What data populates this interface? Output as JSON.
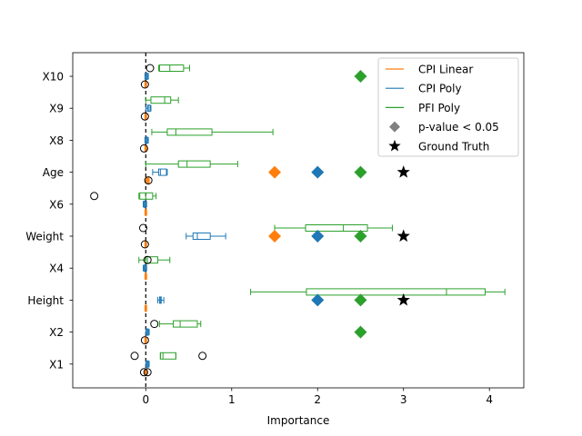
{
  "chart_data": {
    "type": "boxplot",
    "title": "",
    "xlabel": "Importance",
    "ylabel": "",
    "xlim": [
      -0.85,
      4.4
    ],
    "xticks": [
      0,
      1,
      2,
      3,
      4
    ],
    "xtick_labels": [
      "0",
      "1",
      "2",
      "3",
      "4"
    ],
    "reference_line": 0,
    "categories": [
      "X1",
      "X2",
      "Height",
      "X4",
      "Weight",
      "X6",
      "Age",
      "X8",
      "X9",
      "X10"
    ],
    "series_styles": {
      "cpi_linear": {
        "color": "#ff7f0e"
      },
      "cpi_poly": {
        "color": "#1f77b4"
      },
      "pfi_poly": {
        "color": "#2ca02c"
      }
    },
    "series": [
      {
        "name": "CPI Linear",
        "key": "cpi_linear",
        "boxes": [
          {
            "category": "X1",
            "whislo": -0.01,
            "q1": -0.005,
            "med": 0.0,
            "q3": 0.005,
            "whishi": 0.01,
            "fliers": [
              -0.02,
              0.02
            ]
          },
          {
            "category": "X2",
            "whislo": -0.01,
            "q1": -0.005,
            "med": 0.0,
            "q3": 0.005,
            "whishi": 0.01,
            "fliers": [
              -0.01
            ]
          },
          {
            "category": "Height",
            "whislo": -0.01,
            "q1": -0.005,
            "med": 0.0,
            "q3": 0.005,
            "whishi": 0.01,
            "fliers": []
          },
          {
            "category": "X4",
            "whislo": -0.01,
            "q1": -0.005,
            "med": 0.0,
            "q3": 0.005,
            "whishi": 0.01,
            "fliers": []
          },
          {
            "category": "Weight",
            "whislo": -0.01,
            "q1": -0.005,
            "med": 0.0,
            "q3": 0.005,
            "whishi": 0.01,
            "fliers": [
              -0.01
            ]
          },
          {
            "category": "X6",
            "whislo": -0.01,
            "q1": -0.005,
            "med": 0.0,
            "q3": 0.005,
            "whishi": 0.01,
            "fliers": []
          },
          {
            "category": "Age",
            "whislo": 0.0,
            "q1": 0.01,
            "med": 0.02,
            "q3": 0.03,
            "whishi": 0.04,
            "fliers": [
              0.03
            ]
          },
          {
            "category": "X8",
            "whislo": -0.01,
            "q1": -0.005,
            "med": 0.0,
            "q3": 0.005,
            "whishi": 0.01,
            "fliers": [
              -0.02
            ]
          },
          {
            "category": "X9",
            "whislo": -0.01,
            "q1": -0.005,
            "med": 0.0,
            "q3": 0.005,
            "whishi": 0.01,
            "fliers": [
              -0.01
            ]
          },
          {
            "category": "X10",
            "whislo": -0.01,
            "q1": -0.005,
            "med": 0.0,
            "q3": 0.005,
            "whishi": 0.01,
            "fliers": [
              -0.01
            ]
          }
        ]
      },
      {
        "name": "CPI Poly",
        "key": "cpi_poly",
        "boxes": [
          {
            "category": "X1",
            "whislo": 0.0,
            "q1": 0.01,
            "med": 0.02,
            "q3": 0.03,
            "whishi": 0.04,
            "fliers": []
          },
          {
            "category": "X2",
            "whislo": 0.0,
            "q1": 0.01,
            "med": 0.02,
            "q3": 0.03,
            "whishi": 0.04,
            "fliers": []
          },
          {
            "category": "Height",
            "whislo": 0.14,
            "q1": 0.16,
            "med": 0.17,
            "q3": 0.18,
            "whishi": 0.21,
            "fliers": []
          },
          {
            "category": "X4",
            "whislo": -0.03,
            "q1": -0.02,
            "med": -0.01,
            "q3": 0.0,
            "whishi": 0.01,
            "fliers": []
          },
          {
            "category": "Weight",
            "whislo": 0.47,
            "q1": 0.55,
            "med": 0.6,
            "q3": 0.75,
            "whishi": 0.93,
            "fliers": []
          },
          {
            "category": "X6",
            "whislo": -0.03,
            "q1": -0.02,
            "med": -0.01,
            "q3": 0.0,
            "whishi": 0.01,
            "fliers": []
          },
          {
            "category": "Age",
            "whislo": 0.08,
            "q1": 0.15,
            "med": 0.17,
            "q3": 0.24,
            "whishi": 0.25,
            "fliers": []
          },
          {
            "category": "X8",
            "whislo": -0.01,
            "q1": 0.0,
            "med": 0.01,
            "q3": 0.02,
            "whishi": 0.03,
            "fliers": []
          },
          {
            "category": "X9",
            "whislo": 0.0,
            "q1": 0.02,
            "med": 0.03,
            "q3": 0.05,
            "whishi": 0.06,
            "fliers": []
          },
          {
            "category": "X10",
            "whislo": -0.01,
            "q1": 0.0,
            "med": 0.01,
            "q3": 0.02,
            "whishi": 0.03,
            "fliers": []
          }
        ]
      },
      {
        "name": "PFI Poly",
        "key": "pfi_poly",
        "boxes": [
          {
            "category": "X1",
            "whislo": 0.17,
            "q1": 0.17,
            "med": 0.2,
            "q3": 0.35,
            "whishi": 0.35,
            "fliers": [
              -0.13,
              0.66
            ]
          },
          {
            "category": "X2",
            "whislo": 0.16,
            "q1": 0.32,
            "med": 0.4,
            "q3": 0.6,
            "whishi": 0.64,
            "fliers": [
              0.1
            ]
          },
          {
            "category": "Height",
            "whislo": 1.22,
            "q1": 1.87,
            "med": 3.5,
            "q3": 3.95,
            "whishi": 4.18,
            "fliers": []
          },
          {
            "category": "X4",
            "whislo": -0.08,
            "q1": 0.0,
            "med": 0.02,
            "q3": 0.14,
            "whishi": 0.28,
            "fliers": [
              0.02
            ]
          },
          {
            "category": "Weight",
            "whislo": 1.5,
            "q1": 1.86,
            "med": 2.3,
            "q3": 2.58,
            "whishi": 2.87,
            "fliers": [
              -0.03
            ]
          },
          {
            "category": "X6",
            "whislo": -0.08,
            "q1": -0.07,
            "med": 0.0,
            "q3": 0.08,
            "whishi": 0.12,
            "fliers": [
              -0.6
            ]
          },
          {
            "category": "Age",
            "whislo": 0.0,
            "q1": 0.38,
            "med": 0.48,
            "q3": 0.75,
            "whishi": 1.07,
            "fliers": []
          },
          {
            "category": "X8",
            "whislo": 0.07,
            "q1": 0.25,
            "med": 0.35,
            "q3": 0.77,
            "whishi": 1.48,
            "fliers": []
          },
          {
            "category": "X9",
            "whislo": 0.0,
            "q1": 0.06,
            "med": 0.22,
            "q3": 0.29,
            "whishi": 0.38,
            "fliers": []
          },
          {
            "category": "X10",
            "whislo": 0.15,
            "q1": 0.16,
            "med": 0.28,
            "q3": 0.44,
            "whishi": 0.51,
            "fliers": [
              0.05
            ]
          }
        ]
      }
    ],
    "significance_markers": [
      {
        "series": "pfi_poly",
        "category": "X2",
        "x": 2.5
      },
      {
        "series": "cpi_poly",
        "category": "Height",
        "x": 2.0
      },
      {
        "series": "pfi_poly",
        "category": "Height",
        "x": 2.5
      },
      {
        "series": "cpi_linear",
        "category": "Weight",
        "x": 1.5
      },
      {
        "series": "cpi_poly",
        "category": "Weight",
        "x": 2.0
      },
      {
        "series": "pfi_poly",
        "category": "Weight",
        "x": 2.5
      },
      {
        "series": "cpi_linear",
        "category": "Age",
        "x": 1.5
      },
      {
        "series": "cpi_poly",
        "category": "Age",
        "x": 2.0
      },
      {
        "series": "pfi_poly",
        "category": "Age",
        "x": 2.5
      },
      {
        "series": "pfi_poly",
        "category": "X10",
        "x": 2.5
      }
    ],
    "ground_truth_markers": [
      {
        "category": "Height",
        "x": 3.0
      },
      {
        "category": "Weight",
        "x": 3.0
      },
      {
        "category": "Age",
        "x": 3.0
      }
    ],
    "legend": {
      "placement": "upper-right",
      "entries": [
        {
          "label": "CPI Linear",
          "kind": "line",
          "color": "#ff7f0e"
        },
        {
          "label": "CPI Poly",
          "kind": "line",
          "color": "#1f77b4"
        },
        {
          "label": "PFI Poly",
          "kind": "line",
          "color": "#2ca02c"
        },
        {
          "label": "p-value < 0.05",
          "kind": "diamond",
          "color": "#808080"
        },
        {
          "label": "Ground Truth",
          "kind": "star",
          "color": "#000000"
        }
      ]
    }
  }
}
